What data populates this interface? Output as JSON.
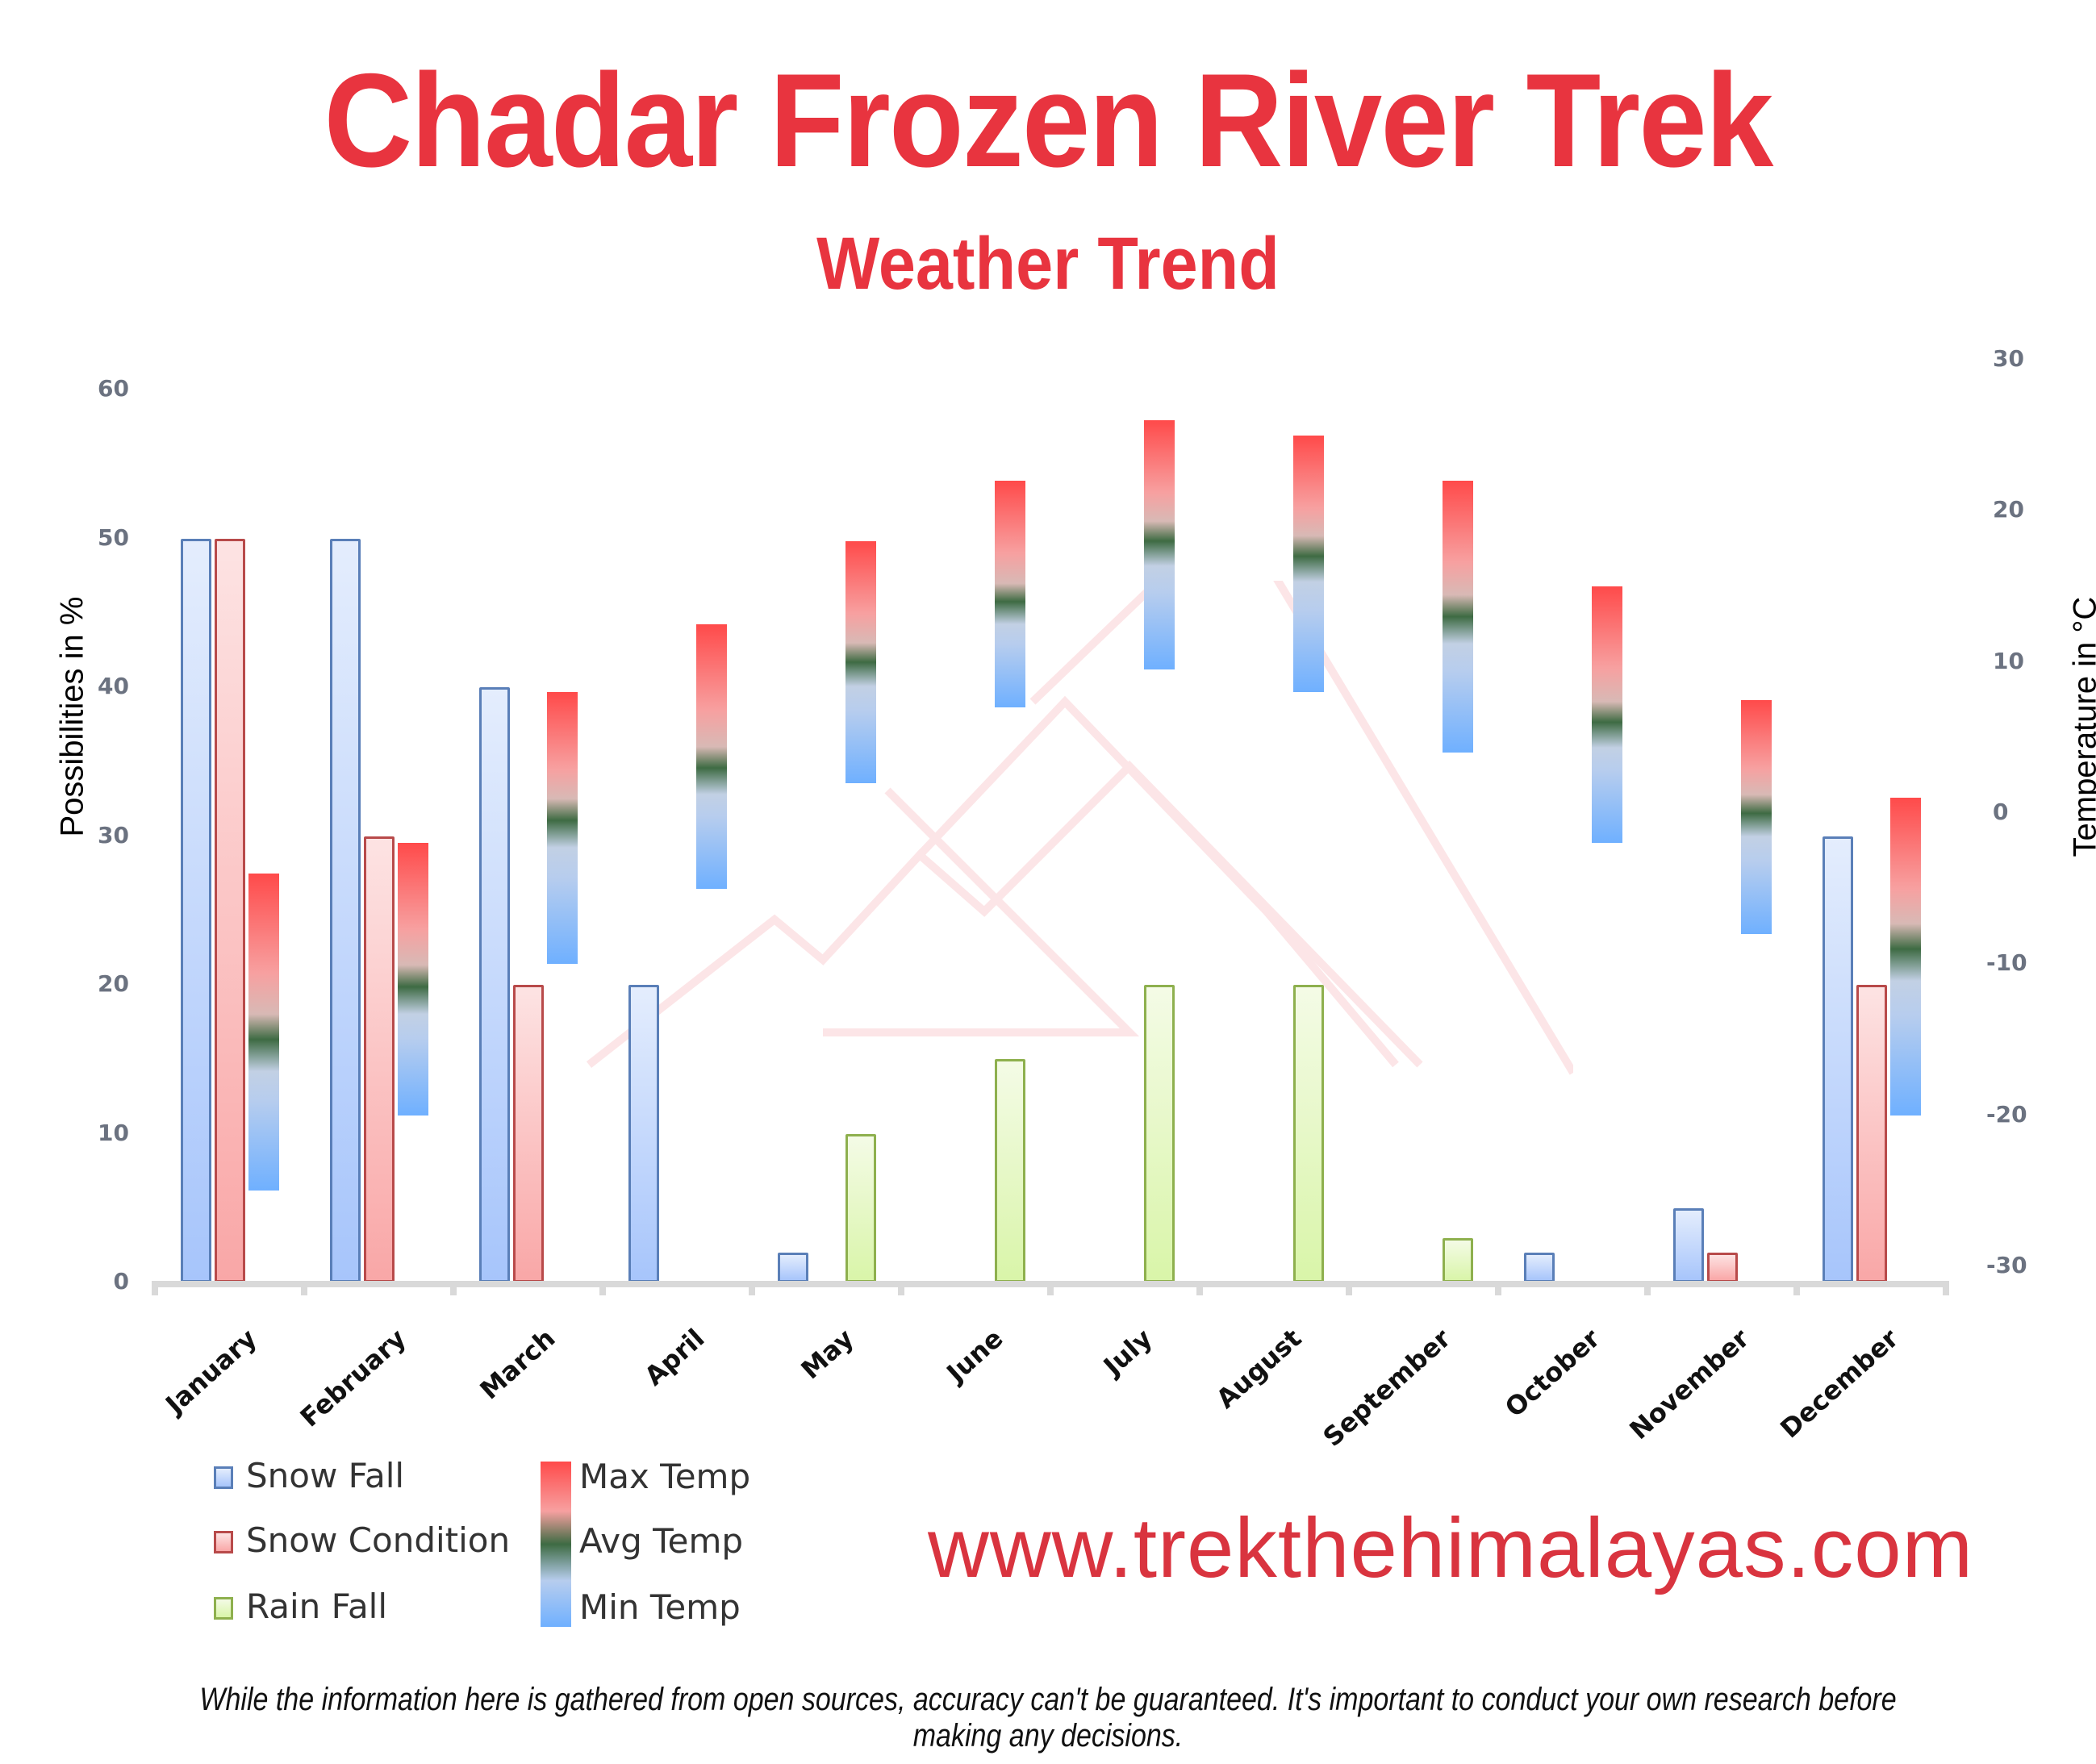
{
  "header": {
    "title": "Chadar Frozen River Trek",
    "subtitle": "Weather Trend"
  },
  "axes": {
    "left_title": "Possibilities in %",
    "right_title": "Temperature in °C",
    "left_ticks": [
      "60",
      "50",
      "40",
      "30",
      "20",
      "10",
      "0"
    ],
    "right_ticks": [
      "30",
      "20",
      "10",
      "0",
      "-10",
      "-20",
      "-30"
    ]
  },
  "months": [
    "January",
    "February",
    "March",
    "April",
    "May",
    "June",
    "July",
    "August",
    "September",
    "October",
    "November",
    "December"
  ],
  "legend": {
    "snow_fall": "Snow Fall",
    "snow_condition": "Snow Condition",
    "rain_fall": "Rain Fall",
    "max_temp": "Max Temp",
    "avg_temp": "Avg Temp",
    "min_temp": "Min Temp"
  },
  "footer": {
    "website": "www.trekthehimalayas.com",
    "disclaimer": "While the information here is gathered from open sources, accuracy can't be guaranteed. It's important to conduct your own research before making any decisions."
  },
  "colors": {
    "title": "#e8343f",
    "snow_fall": "#a7c5fb",
    "snow_condition": "#f9a7a7",
    "rain_fall": "#d9f5a9",
    "max_temp": "#ff4a4a",
    "avg_temp": "#3e6b43",
    "min_temp": "#6fb0ff"
  },
  "chart_data": {
    "type": "bar",
    "title": "Chadar Frozen River Trek",
    "subtitle": "Weather Trend",
    "categories": [
      "January",
      "February",
      "March",
      "April",
      "May",
      "June",
      "July",
      "August",
      "September",
      "October",
      "November",
      "December"
    ],
    "xlabel": "",
    "ylabel": "Possibilities in %",
    "ylim": [
      0,
      60
    ],
    "y2label": "Temperature in °C",
    "y2lim": [
      -30,
      30
    ],
    "grid": false,
    "legend_position": "bottom-left",
    "series": [
      {
        "name": "Snow Fall",
        "axis": "left",
        "type": "bar",
        "values": [
          50,
          50,
          40,
          20,
          2,
          0,
          0,
          0,
          0,
          2,
          5,
          30
        ]
      },
      {
        "name": "Snow Condition",
        "axis": "left",
        "type": "bar",
        "values": [
          50,
          30,
          20,
          0,
          0,
          0,
          0,
          0,
          0,
          0,
          2,
          20
        ]
      },
      {
        "name": "Rain Fall",
        "axis": "left",
        "type": "bar",
        "values": [
          0,
          0,
          0,
          0,
          10,
          15,
          20,
          20,
          3,
          0,
          0,
          0
        ]
      },
      {
        "name": "Max Temp",
        "axis": "right",
        "type": "range-top",
        "values": [
          -4,
          -2,
          8,
          12.5,
          18,
          22,
          26,
          25,
          22,
          15,
          7.5,
          1
        ]
      },
      {
        "name": "Avg Temp",
        "axis": "right",
        "type": "range-mid",
        "values": [
          -15,
          -11.5,
          -0.5,
          3,
          10,
          14,
          18,
          17,
          13,
          6,
          0,
          -9
        ]
      },
      {
        "name": "Min Temp",
        "axis": "right",
        "type": "range-bottom",
        "values": [
          -25,
          -20,
          -10,
          -5,
          2,
          7,
          9.5,
          8,
          4,
          -2,
          -8,
          -20
        ]
      }
    ]
  }
}
